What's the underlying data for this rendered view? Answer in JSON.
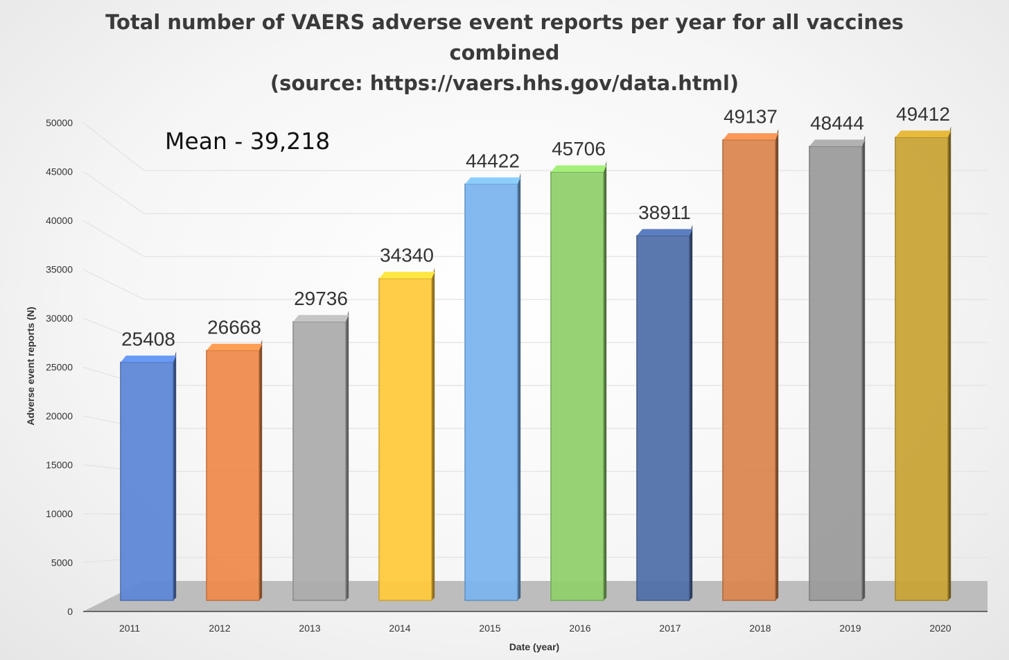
{
  "chart_data": {
    "type": "bar",
    "title_lines": [
      "Total number of VAERS adverse event reports per year for all vaccines",
      "combined",
      "(source: https://vaers.hhs.gov/data.html)"
    ],
    "xlabel": "Date (year)",
    "ylabel": "Adverse event reports (N)",
    "ylim": [
      0,
      50000
    ],
    "yticks": [
      0,
      5000,
      10000,
      15000,
      20000,
      25000,
      30000,
      35000,
      40000,
      45000,
      50000
    ],
    "categories": [
      "2011",
      "2012",
      "2013",
      "2014",
      "2015",
      "2016",
      "2017",
      "2018",
      "2019",
      "2020"
    ],
    "values": [
      25408,
      26668,
      29736,
      34340,
      44422,
      45706,
      38911,
      49137,
      48444,
      49412
    ],
    "colors": [
      "#5b86d6",
      "#ef8a4a",
      "#ababab",
      "#ffc93a",
      "#7ab4ee",
      "#8fd06a",
      "#4f6ea8",
      "#d9844c",
      "#9a9a9a",
      "#c9a234"
    ],
    "grid": true,
    "style": "3d-columns",
    "annotation": "Mean - 39,218"
  }
}
